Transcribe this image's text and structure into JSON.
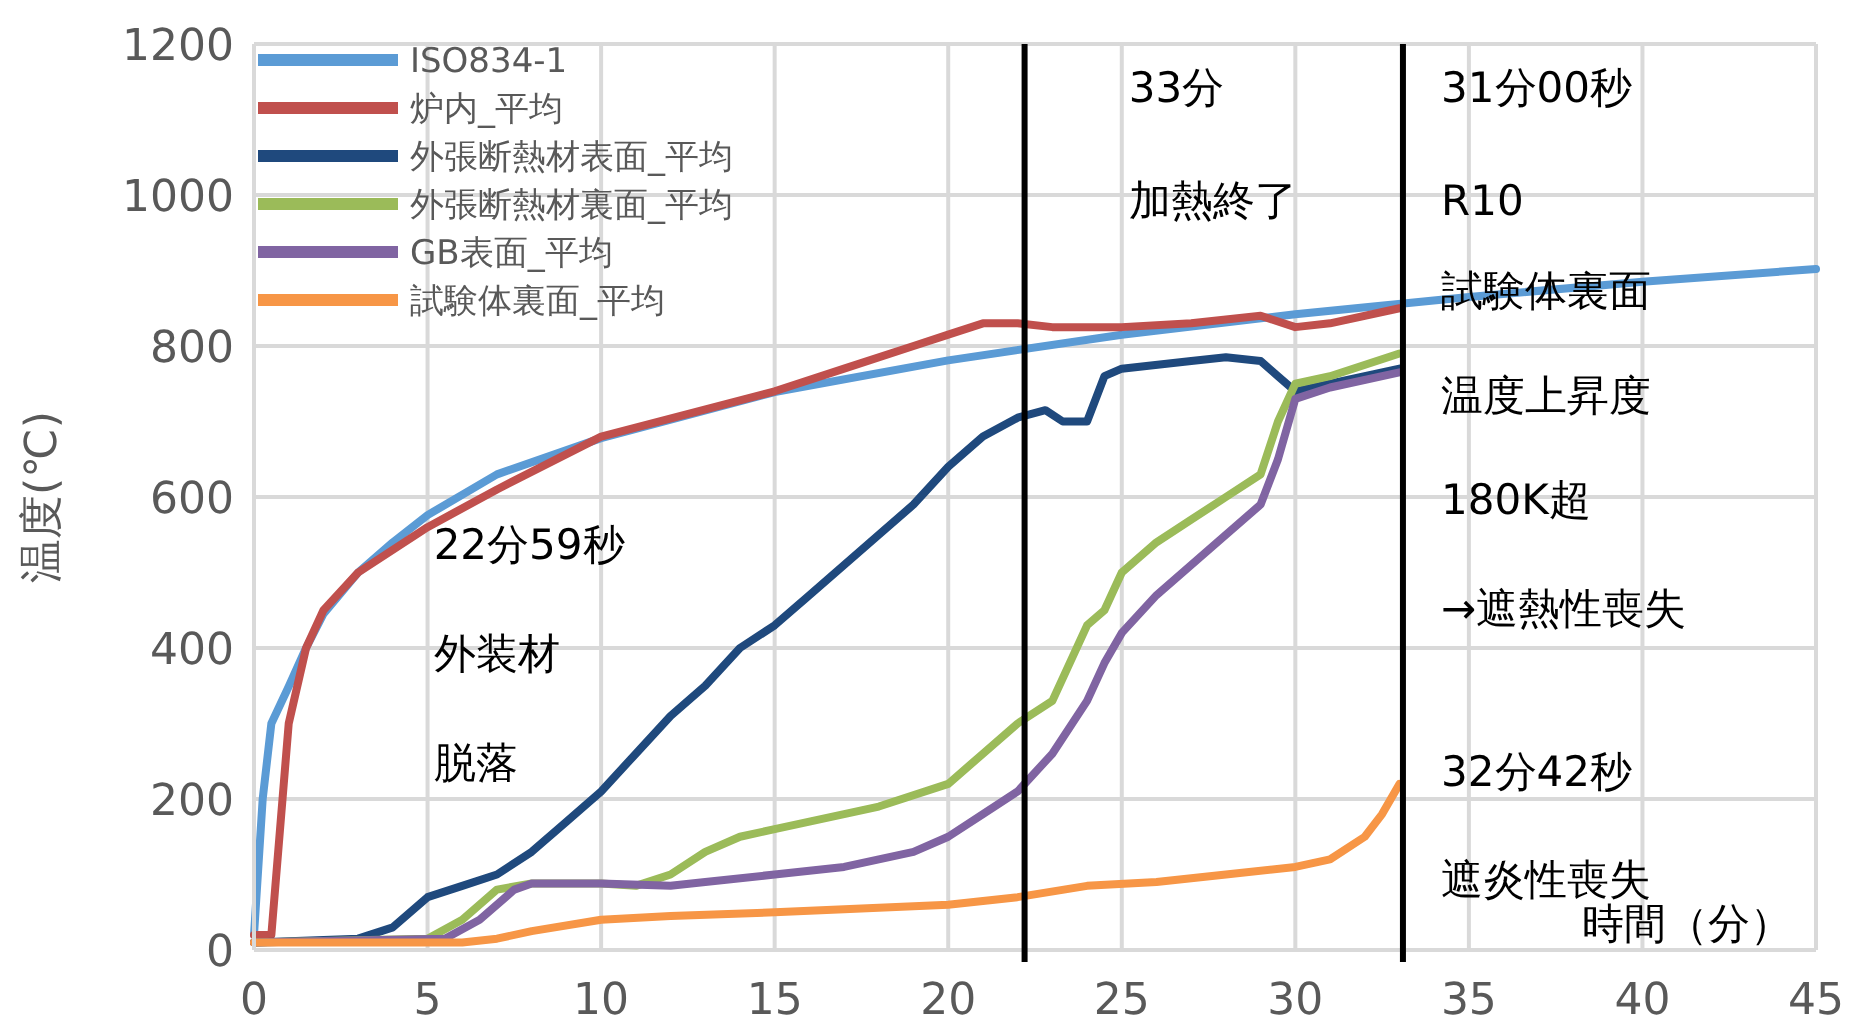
{
  "chart_data": {
    "type": "line",
    "xlabel": "時間（分）",
    "ylabel": "温度(℃)",
    "xlim": [
      0,
      45
    ],
    "ylim": [
      0,
      1200
    ],
    "xticks": [
      0,
      5,
      10,
      15,
      20,
      25,
      30,
      35,
      40,
      45
    ],
    "yticks": [
      0,
      200,
      400,
      600,
      800,
      1000,
      1200
    ],
    "grid": true,
    "legend": "top left",
    "line_style": "solid",
    "marker": "none",
    "series": [
      {
        "name": "ISO834-1",
        "color": "#5b9bd5",
        "x": [
          0,
          0.25,
          0.5,
          1,
          1.5,
          2,
          3,
          4,
          5,
          7,
          10,
          15,
          20,
          25,
          30,
          35,
          40,
          45
        ],
        "values": [
          20,
          200,
          300,
          349,
          400,
          445,
          500,
          540,
          576,
          630,
          678,
          739,
          781,
          815,
          842,
          865,
          885,
          902
        ]
      },
      {
        "name": "炉内_平均",
        "color": "#c0504d",
        "x": [
          0,
          0.5,
          1,
          1.5,
          2,
          3,
          5,
          7,
          10,
          15,
          17,
          19,
          20,
          21,
          22,
          23,
          25,
          27,
          29,
          30,
          31,
          33
        ],
        "values": [
          20,
          20,
          300,
          400,
          450,
          500,
          560,
          610,
          680,
          740,
          770,
          800,
          815,
          830,
          830,
          825,
          825,
          830,
          840,
          825,
          830,
          850
        ]
      },
      {
        "name": "外張断熱材表面_平均",
        "color": "#1f497d",
        "x": [
          0,
          3,
          4,
          5,
          6,
          7,
          8,
          9,
          10,
          11,
          12,
          13,
          14,
          15,
          16,
          17,
          18,
          19,
          20,
          21,
          22,
          22.8,
          23.3,
          24,
          24.5,
          25,
          27,
          28,
          29,
          29.5,
          30,
          31,
          33
        ],
        "values": [
          10,
          15,
          30,
          70,
          85,
          100,
          130,
          170,
          210,
          260,
          310,
          350,
          400,
          430,
          470,
          510,
          550,
          590,
          640,
          680,
          705,
          715,
          700,
          700,
          760,
          770,
          780,
          785,
          780,
          760,
          740,
          750,
          770
        ]
      },
      {
        "name": "外張断熱材裏面_平均",
        "color": "#9bbb59",
        "x": [
          0,
          5,
          6,
          7,
          8,
          10,
          11,
          12,
          13,
          14,
          15,
          16,
          18,
          20,
          21,
          22,
          23,
          23.5,
          24,
          24.5,
          25,
          26,
          27,
          28,
          29,
          29.5,
          30,
          31,
          33
        ],
        "values": [
          10,
          15,
          40,
          80,
          88,
          88,
          85,
          100,
          130,
          150,
          160,
          170,
          190,
          220,
          260,
          300,
          330,
          380,
          430,
          450,
          500,
          540,
          570,
          600,
          630,
          700,
          750,
          760,
          790
        ]
      },
      {
        "name": "GB表面_平均",
        "color": "#8064a2",
        "x": [
          0,
          5.5,
          6.5,
          7.5,
          8,
          10,
          12,
          13,
          15,
          17,
          19,
          20,
          21,
          22,
          23,
          24,
          24.5,
          25,
          26,
          27,
          28,
          29,
          29.5,
          30,
          31,
          33
        ],
        "values": [
          10,
          15,
          40,
          80,
          88,
          88,
          85,
          90,
          100,
          110,
          130,
          150,
          180,
          210,
          260,
          330,
          380,
          420,
          470,
          510,
          550,
          590,
          650,
          730,
          745,
          765
        ]
      },
      {
        "name": "試験体裏面_平均",
        "color": "#f79646",
        "x": [
          0,
          6,
          7,
          8,
          10,
          12,
          15,
          20,
          22,
          24,
          26,
          28,
          30,
          31,
          32,
          32.5,
          33
        ],
        "values": [
          10,
          10,
          15,
          25,
          40,
          45,
          50,
          60,
          70,
          85,
          90,
          100,
          110,
          120,
          150,
          180,
          220
        ]
      }
    ],
    "ref_lines": [
      {
        "axis": "x",
        "value": 22.2,
        "color": "#000000"
      },
      {
        "axis": "x",
        "value": 33.1,
        "color": "#000000"
      }
    ],
    "annotations": [
      "22分59秒",
      "外装材",
      "脱落",
      "33分",
      "加熱終了",
      "31分00秒",
      "R10",
      "試験体裏面",
      "温度上昇度",
      "180K超",
      "→遮熱性喪失",
      "32分42秒",
      "遮炎性喪失"
    ]
  }
}
